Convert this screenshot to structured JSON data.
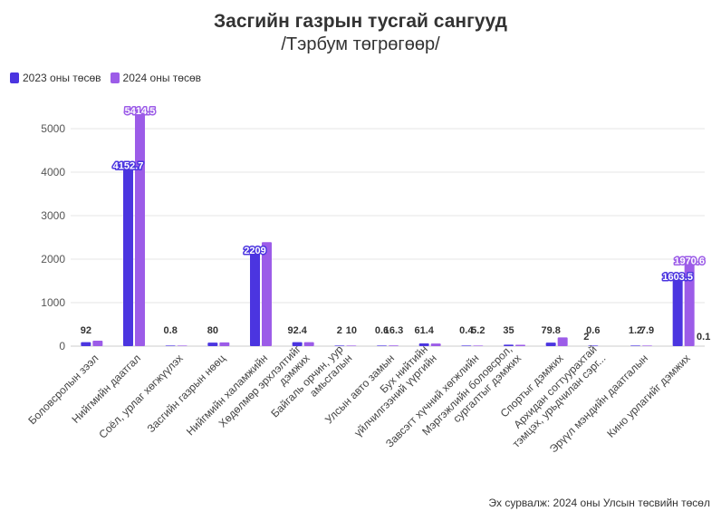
{
  "chart_data": {
    "type": "bar",
    "title": "Засгийн газрын тусгай сангууд",
    "subtitle": "/Тэрбум төгрөгөөр/",
    "source": "Эх сурвалж: 2024 оны Улсын төсвийн төсөл",
    "ylim": [
      0,
      5500
    ],
    "yticks": [
      0,
      1000,
      2000,
      3000,
      4000,
      5000
    ],
    "grid": true,
    "legend_position": "top-left",
    "categories": [
      [
        "Боловсролын зээл"
      ],
      [
        "Нийгмийн даатгал"
      ],
      [
        "Соёл, урлаг хөгжүүлэх"
      ],
      [
        "Засгийн газрын нөөц"
      ],
      [
        "Нийгмийн халамжийн"
      ],
      [
        "Хөдөлмөр эрхлэлтийг",
        "дэмжих"
      ],
      [
        "Байгаль орчин, уур",
        "амьсгалын"
      ],
      [
        "Улсын авто замын"
      ],
      [
        "Бух нийтийн",
        "үйлчилгээний үүргийн"
      ],
      [
        "Завсэгт хүчний хөгжлийн"
      ],
      [
        "Мэргэжлийн боловсрол,",
        "сургалтыг дэмжих"
      ],
      [
        "Спортыг дэмжих"
      ],
      [
        "Архидан согтуурахтай",
        "тэмцэх, урьдчилан сэрг..."
      ],
      [
        "Эрүүл мэндийн даатгалын"
      ],
      [
        "Кино урлагийг дэмжих"
      ]
    ],
    "series": [
      {
        "name": "2023 оны төсөв",
        "color": "#4b35e0",
        "values": [
          92,
          4152.7,
          0.8,
          80,
          2209,
          92.4,
          2,
          0.6,
          61.4,
          0.4,
          35,
          79.8,
          0.6,
          1.2,
          1603.5
        ],
        "labels": [
          "92",
          "4152.7",
          "0.8",
          "80",
          "2209",
          "92.4",
          "2",
          "0.6",
          "61.4",
          "0.4",
          "35",
          "79.8",
          "0.6",
          "1.2",
          "1603.5"
        ]
      },
      {
        "name": "2024 оны төсөв",
        "color": "#9c5ce8",
        "values": [
          125,
          5414.5,
          1,
          85,
          2390,
          90,
          10,
          16.3,
          60,
          5.2,
          30,
          200,
          0,
          7.9,
          1970.6
        ],
        "labels": [
          "",
          "5414.5",
          "",
          "",
          "",
          "",
          "10",
          "16.3",
          "",
          "5.2",
          "",
          "",
          "",
          "7.9",
          "1970.6"
        ]
      }
    ],
    "extra_labels": [
      {
        "category_index": 12,
        "text": "2"
      },
      {
        "category_index": 14,
        "text": "0.1"
      }
    ]
  }
}
